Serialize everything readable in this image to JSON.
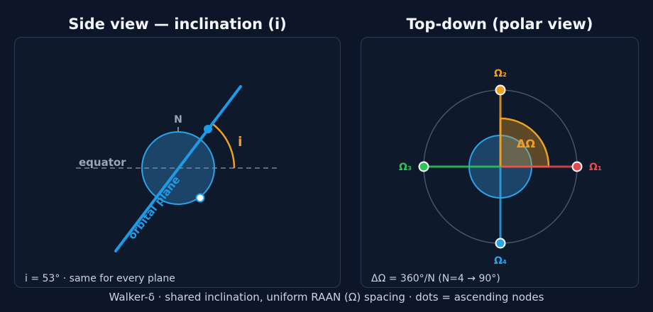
{
  "left": {
    "title": "Side view — inclination (i)",
    "north_label": "N",
    "equator_label": "equator",
    "plane_label": "orbital plane",
    "angle_label": "i",
    "note": "i = 53° · same for every plane",
    "inclination_deg": 53
  },
  "right": {
    "title": "Top-down (polar view)",
    "delta_label": "ΔΩ",
    "note": "ΔΩ = 360°/N (N=4 → 90°)",
    "nodes": [
      {
        "label": "Ω₁",
        "angle_deg": 0,
        "color": "#e5484d"
      },
      {
        "label": "Ω₂",
        "angle_deg": 90,
        "color": "#f0a020"
      },
      {
        "label": "Ω₃",
        "angle_deg": 180,
        "color": "#2ec45a"
      },
      {
        "label": "Ω₄",
        "angle_deg": 270,
        "color": "#2aa3e8"
      }
    ]
  },
  "footer": "Walker-δ · shared inclination, uniform RAAN (Ω) spacing · dots = ascending nodes",
  "colors": {
    "orbit": "#1e9be6",
    "earth_fill": "#1c4468",
    "earth_stroke": "#2aa3e8",
    "accent": "#f0a020",
    "grey": "#7a8699"
  }
}
